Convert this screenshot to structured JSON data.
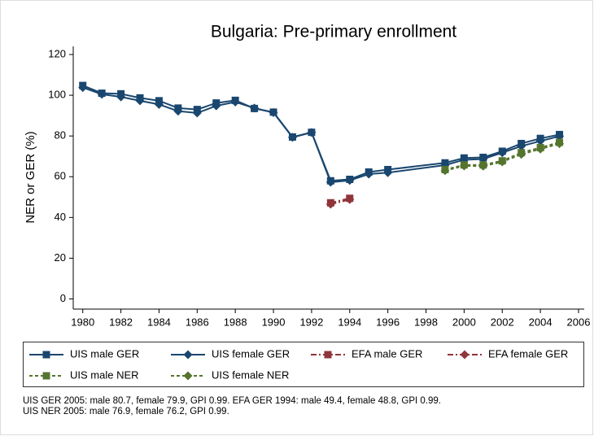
{
  "chart_data": {
    "type": "line",
    "title": "Bulgaria: Pre-primary enrollment",
    "y_label": "NER or GER (%)",
    "x": [
      1980,
      1981,
      1982,
      1983,
      1984,
      1985,
      1986,
      1987,
      1988,
      1989,
      1990,
      1991,
      1992,
      1993,
      1994,
      1995,
      1996,
      1999,
      2000,
      2001,
      2002,
      2003,
      2004,
      2005
    ],
    "series": [
      {
        "name": "UIS male GER",
        "color": "#1a476f",
        "marker": "square",
        "dash": "solid",
        "values": [
          104.8,
          101,
          100.7,
          98.7,
          97.3,
          93.7,
          93,
          96.2,
          97.5,
          93.5,
          91.7,
          79.5,
          81.8,
          58,
          58.7,
          62.3,
          63.5,
          66.8,
          69.2,
          69.5,
          72.5,
          76.3,
          78.8,
          80.7
        ]
      },
      {
        "name": "UIS female GER",
        "color": "#1a476f",
        "marker": "diamond",
        "dash": "solid",
        "values": [
          103.8,
          100.5,
          99.2,
          97.3,
          95.5,
          92.2,
          91.3,
          94.8,
          96.7,
          93.7,
          91.5,
          79.3,
          81.7,
          57.3,
          58.2,
          61.3,
          62,
          65.7,
          68.3,
          68.7,
          71.8,
          75,
          77.5,
          79.9
        ]
      },
      {
        "name": "EFA male GER",
        "color": "#90353b",
        "marker": "square",
        "dash": "dashdot",
        "values": [
          null,
          null,
          null,
          null,
          null,
          null,
          null,
          null,
          null,
          null,
          null,
          null,
          null,
          47.2,
          49.4,
          null,
          null,
          null,
          null,
          null,
          null,
          null,
          null,
          null
        ]
      },
      {
        "name": "EFA female GER",
        "color": "#90353b",
        "marker": "diamond",
        "dash": "dashdot",
        "values": [
          null,
          null,
          null,
          null,
          null,
          null,
          null,
          null,
          null,
          null,
          null,
          null,
          null,
          46.5,
          48.8,
          null,
          null,
          null,
          null,
          null,
          null,
          null,
          null,
          null
        ]
      },
      {
        "name": "UIS male NER",
        "color": "#55752f",
        "marker": "square",
        "dash": "shortdash",
        "values": [
          null,
          null,
          null,
          null,
          null,
          null,
          null,
          null,
          null,
          null,
          null,
          null,
          null,
          null,
          null,
          null,
          null,
          63.5,
          65.8,
          65.8,
          67.8,
          71.8,
          74.3,
          76.9
        ]
      },
      {
        "name": "UIS female NER",
        "color": "#55752f",
        "marker": "diamond",
        "dash": "shortdash",
        "values": [
          null,
          null,
          null,
          null,
          null,
          null,
          null,
          null,
          null,
          null,
          null,
          null,
          null,
          null,
          null,
          null,
          null,
          63,
          65.3,
          65.2,
          67.3,
          71,
          73.6,
          76.2
        ]
      }
    ],
    "xlim": [
      1979.5,
      2006.3
    ],
    "xticks": [
      1980,
      1982,
      1984,
      1986,
      1988,
      1990,
      1992,
      1994,
      1996,
      1998,
      2000,
      2002,
      2004,
      2006
    ],
    "ylim": [
      -5,
      124
    ],
    "yticks": [
      0,
      20,
      40,
      60,
      80,
      100,
      120
    ],
    "grid": false,
    "legend": "bottom",
    "notes": [
      "UIS GER 2005: male 80.7, female 79.9, GPI 0.99. EFA GER 1994: male 49.4, female 48.8, GPI 0.99.",
      "UIS NER 2005: male 76.9, female 76.2, GPI 0.99."
    ]
  }
}
